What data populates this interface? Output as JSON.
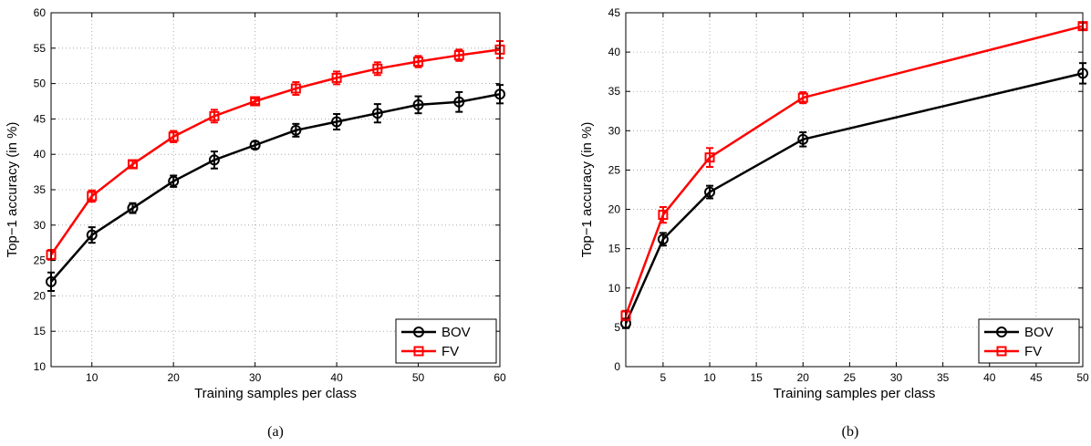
{
  "chart_data": [
    {
      "type": "line",
      "caption": "(a)",
      "xlabel": "Training samples per class",
      "ylabel": "Top−1 accuracy (in %)",
      "xlim": [
        5,
        60
      ],
      "ylim": [
        10,
        60
      ],
      "xticks": [
        10,
        20,
        30,
        40,
        50,
        60
      ],
      "yticks": [
        10,
        15,
        20,
        25,
        30,
        35,
        40,
        45,
        50,
        55,
        60
      ],
      "grid": true,
      "legend_position": "bottom-right",
      "series": [
        {
          "name": "BOV",
          "color": "#000000",
          "marker": "circle",
          "x": [
            5,
            10,
            15,
            20,
            25,
            30,
            35,
            40,
            45,
            50,
            55,
            60
          ],
          "y": [
            22.0,
            28.6,
            32.4,
            36.2,
            39.2,
            41.3,
            43.4,
            44.6,
            45.8,
            47.0,
            47.4,
            48.5
          ],
          "err": [
            1.3,
            1.1,
            0.7,
            0.8,
            1.2,
            0.5,
            0.9,
            1.1,
            1.3,
            1.2,
            1.4,
            1.3
          ]
        },
        {
          "name": "FV",
          "color": "#ff0000",
          "marker": "square",
          "x": [
            5,
            10,
            15,
            20,
            25,
            30,
            35,
            40,
            45,
            50,
            55,
            60
          ],
          "y": [
            25.8,
            34.1,
            38.6,
            42.5,
            45.4,
            47.5,
            49.3,
            50.8,
            52.1,
            53.1,
            54.0,
            54.8
          ],
          "err": [
            0.7,
            0.8,
            0.5,
            0.8,
            0.9,
            0.4,
            0.9,
            0.9,
            0.9,
            0.8,
            0.8,
            1.2
          ]
        }
      ]
    },
    {
      "type": "line",
      "caption": "(b)",
      "xlabel": "Training samples per class",
      "ylabel": "Top−1 accuracy (in %)",
      "xlim": [
        1,
        50
      ],
      "ylim": [
        0,
        45
      ],
      "xticks": [
        5,
        10,
        15,
        20,
        25,
        30,
        35,
        40,
        45,
        50
      ],
      "yticks": [
        0,
        5,
        10,
        15,
        20,
        25,
        30,
        35,
        40,
        45
      ],
      "grid": true,
      "legend_position": "bottom-right",
      "series": [
        {
          "name": "BOV",
          "color": "#000000",
          "marker": "circle",
          "x": [
            1,
            5,
            10,
            20,
            50
          ],
          "y": [
            5.5,
            16.2,
            22.2,
            28.9,
            37.3
          ],
          "err": [
            0.6,
            0.8,
            0.8,
            0.9,
            1.3
          ]
        },
        {
          "name": "FV",
          "color": "#ff0000",
          "marker": "square",
          "x": [
            1,
            5,
            10,
            20,
            50
          ],
          "y": [
            6.5,
            19.3,
            26.6,
            34.2,
            43.3
          ],
          "err": [
            0.6,
            1.0,
            1.2,
            0.7,
            0.4
          ]
        }
      ]
    }
  ]
}
